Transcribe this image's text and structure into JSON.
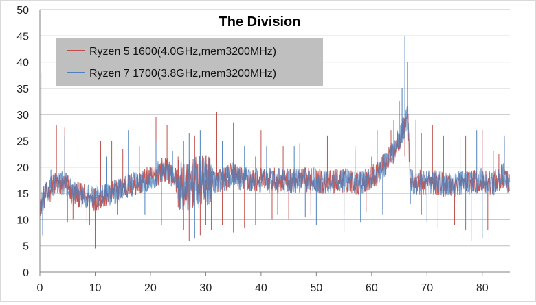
{
  "chart_data": {
    "type": "line",
    "title": "The Division",
    "xlabel": "",
    "ylabel": "",
    "xlim": [
      0,
      85
    ],
    "ylim": [
      0,
      50
    ],
    "x_ticks": [
      "0",
      "10",
      "20",
      "30",
      "40",
      "50",
      "60",
      "70",
      "80"
    ],
    "y_ticks": [
      "0",
      "5",
      "10",
      "15",
      "20",
      "25",
      "30",
      "35",
      "40",
      "45",
      "50"
    ],
    "grid": "horizontal",
    "legend_position": "top-left",
    "series": [
      {
        "name": "Ryzen 5 1600(4.0GHz,mem3200MHz)",
        "color": "#c0504d",
        "x": [
          0,
          1,
          2,
          3,
          4,
          5,
          6,
          8,
          10,
          12,
          14,
          16,
          18,
          20,
          21,
          22,
          23,
          24,
          25,
          26,
          27,
          28,
          30,
          32,
          34,
          35,
          36,
          38,
          40,
          42,
          44,
          46,
          48,
          50,
          52,
          54,
          56,
          58,
          60,
          61,
          62,
          63,
          64,
          65,
          66,
          66.5,
          67,
          68,
          70,
          72,
          74,
          76,
          78,
          80,
          82,
          84,
          85
        ],
        "values": [
          13,
          14.5,
          16,
          17,
          16.5,
          16.5,
          15,
          14.5,
          14,
          14.5,
          15.5,
          16.5,
          17,
          18,
          18.5,
          19.5,
          19.5,
          18.5,
          17,
          15.5,
          16.5,
          17,
          17.5,
          17.5,
          18,
          19,
          18,
          17.5,
          17.5,
          17.5,
          17.5,
          17.5,
          17.5,
          17.5,
          17,
          17.5,
          17.5,
          17,
          18,
          19,
          20,
          21.5,
          23,
          25.5,
          28,
          30.5,
          17.5,
          17,
          17,
          17,
          16.5,
          17,
          17,
          17.5,
          17,
          18.5,
          16
        ],
        "spikes": [
          [
            3,
            28
          ],
          [
            4.5,
            27.5
          ],
          [
            6,
            10
          ],
          [
            8.5,
            9.5
          ],
          [
            10,
            4.5
          ],
          [
            11,
            25
          ],
          [
            13,
            25
          ],
          [
            15,
            23.5
          ],
          [
            18,
            24
          ],
          [
            21,
            29.5
          ],
          [
            23,
            28
          ],
          [
            25,
            22
          ],
          [
            26,
            8
          ],
          [
            27,
            6
          ],
          [
            28,
            26
          ],
          [
            29,
            7
          ],
          [
            30,
            9
          ],
          [
            32,
            30.5
          ],
          [
            33,
            9
          ],
          [
            35,
            28.5
          ],
          [
            37,
            8.5
          ],
          [
            39,
            22
          ],
          [
            40,
            27
          ],
          [
            42,
            10
          ],
          [
            44,
            24
          ],
          [
            45,
            10
          ],
          [
            47,
            24.5
          ],
          [
            49,
            11
          ],
          [
            52,
            26
          ],
          [
            55,
            11
          ],
          [
            57,
            24
          ],
          [
            59,
            11.5
          ],
          [
            61,
            27
          ],
          [
            62,
            12
          ],
          [
            63.5,
            27
          ],
          [
            65,
            32.5
          ],
          [
            66,
            22
          ],
          [
            68,
            29
          ],
          [
            69,
            11
          ],
          [
            71,
            28
          ],
          [
            72,
            8.5
          ],
          [
            74,
            28
          ],
          [
            75,
            9
          ],
          [
            77,
            26
          ],
          [
            78,
            6
          ],
          [
            80,
            27
          ],
          [
            81,
            8
          ],
          [
            83,
            22.5
          ],
          [
            84,
            25
          ]
        ]
      },
      {
        "name": "Ryzen 7 1700(3.8GHz,mem3200MHz)",
        "color": "#4f81bd",
        "x": [
          0,
          1,
          2,
          3,
          4,
          5,
          6,
          8,
          10,
          12,
          14,
          16,
          18,
          20,
          21,
          22,
          23,
          24,
          25,
          26,
          27,
          28,
          30,
          32,
          34,
          35,
          36,
          38,
          40,
          42,
          44,
          46,
          48,
          50,
          52,
          54,
          56,
          58,
          60,
          61,
          62,
          63,
          64,
          65,
          66,
          66.5,
          67,
          68,
          70,
          72,
          74,
          76,
          78,
          80,
          82,
          84,
          85
        ],
        "values": [
          12.5,
          14.5,
          16,
          17,
          17,
          16.5,
          15,
          14.5,
          14.5,
          14.5,
          15.5,
          16.5,
          17,
          18,
          18.5,
          19.5,
          19,
          18.5,
          17,
          16.5,
          16.5,
          17,
          17.5,
          17.5,
          18,
          19,
          18,
          17.5,
          17.5,
          17.5,
          17.5,
          17.5,
          17.5,
          17.5,
          17,
          17.5,
          17.5,
          17,
          18,
          19,
          20,
          21.5,
          23,
          25.5,
          28,
          30.5,
          17.5,
          17,
          17,
          17,
          16.5,
          17,
          17,
          17.5,
          17,
          18.5,
          16
        ],
        "spikes": [
          [
            0.2,
            38
          ],
          [
            0.5,
            7
          ],
          [
            2,
            19.5
          ],
          [
            4.5,
            26
          ],
          [
            5,
            9.5
          ],
          [
            9,
            9
          ],
          [
            10.5,
            4.5
          ],
          [
            12,
            22
          ],
          [
            14,
            11
          ],
          [
            16,
            27
          ],
          [
            19,
            11
          ],
          [
            21,
            25
          ],
          [
            22,
            9
          ],
          [
            24,
            23
          ],
          [
            25,
            14
          ],
          [
            26,
            25
          ],
          [
            27,
            26.5
          ],
          [
            28,
            6.5
          ],
          [
            29,
            27
          ],
          [
            31,
            8
          ],
          [
            33,
            25
          ],
          [
            35,
            7.5
          ],
          [
            37,
            24
          ],
          [
            39,
            9
          ],
          [
            41,
            24
          ],
          [
            43,
            11
          ],
          [
            46,
            24
          ],
          [
            48,
            10.5
          ],
          [
            50,
            9
          ],
          [
            53,
            25
          ],
          [
            55,
            7.5
          ],
          [
            57,
            23
          ],
          [
            58,
            9.5
          ],
          [
            60,
            22
          ],
          [
            62,
            11
          ],
          [
            64,
            29
          ],
          [
            65.5,
            35
          ],
          [
            66,
            45
          ],
          [
            66.5,
            40
          ],
          [
            67,
            13
          ],
          [
            69,
            26.5
          ],
          [
            70,
            9.5
          ],
          [
            73,
            26
          ],
          [
            74,
            10
          ],
          [
            76,
            25.5
          ],
          [
            77,
            8
          ],
          [
            79,
            27
          ],
          [
            80,
            6.5
          ],
          [
            82,
            23
          ],
          [
            84,
            26
          ]
        ]
      }
    ]
  }
}
